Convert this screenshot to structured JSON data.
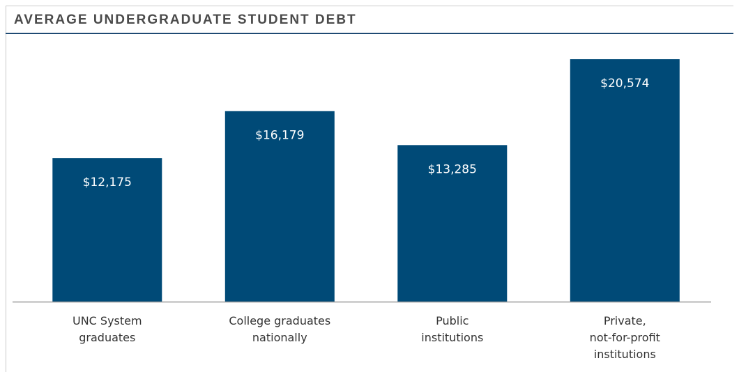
{
  "title": "AVERAGE UNDERGRADUATE STUDENT DEBT",
  "colors": {
    "bar": "#004a77",
    "title_rule": "#1f4a73",
    "baseline": "#9a9a9a"
  },
  "chart_data": {
    "type": "bar",
    "title": "AVERAGE UNDERGRADUATE STUDENT DEBT",
    "categories": [
      [
        "UNC System",
        "graduates"
      ],
      [
        "College graduates",
        "nationally"
      ],
      [
        "Public",
        "institutions"
      ],
      [
        "Private,",
        "not-for-profit",
        "institutions"
      ]
    ],
    "values": [
      12175,
      16179,
      13285,
      20574
    ],
    "value_labels": [
      "$12,175",
      "$16,179",
      "$13,285",
      "$20,574"
    ],
    "xlabel": "",
    "ylabel": "",
    "ylim": [
      0,
      24000
    ],
    "grid": false,
    "legend": "none"
  }
}
